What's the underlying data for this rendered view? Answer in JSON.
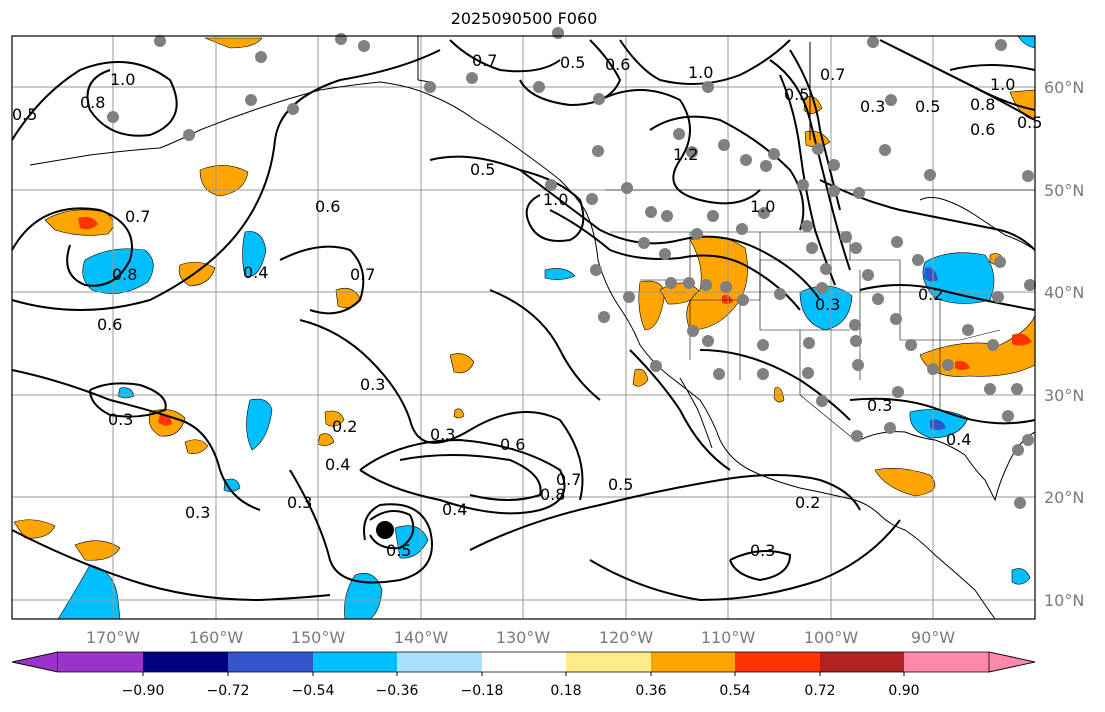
{
  "title": "2025090500 F060",
  "lon_labels": [
    "170°W",
    "160°W",
    "150°W",
    "140°W",
    "130°W",
    "120°W",
    "110°W",
    "100°W",
    "90°W"
  ],
  "lat_labels": [
    "60°N",
    "50°N",
    "40°N",
    "30°N",
    "20°N",
    "10°N"
  ],
  "colorbar": {
    "ticks": [
      "−0.90",
      "−0.72",
      "−0.54",
      "−0.36",
      "−0.18",
      "0.18",
      "0.36",
      "0.54",
      "0.72",
      "0.90"
    ],
    "colors": [
      "#9933cc",
      "#000080",
      "#3355cc",
      "#00bfff",
      "#aadfff",
      "#ffffff",
      "#ffeb8a",
      "#ffa500",
      "#ff3300",
      "#b22222",
      "#ff88aa"
    ]
  },
  "contour_labels": [
    "0.5",
    "0.8",
    "1.0",
    "0.7",
    "0.5",
    "0.6",
    "1.0",
    "0.5",
    "0.7",
    "1.0",
    "0.5",
    "1.2",
    "0.3",
    "0.5",
    "0.8",
    "0.6",
    "1.0",
    "0.5",
    "0.6",
    "0.7",
    "1.0",
    "0.8",
    "0.6",
    "0.4",
    "0.7",
    "0.2",
    "0.3",
    "0.3",
    "0.2",
    "0.4",
    "0.3",
    "0.6",
    "0.8",
    "0.7",
    "0.5",
    "0.3",
    "0.3",
    "0.4",
    "0.5",
    "0.2",
    "0.3",
    "0.4",
    "0.3",
    "0.3"
  ],
  "fill_colors": {
    "orange": "#ffa500",
    "cyan": "#00bfff",
    "red": "#ff3300",
    "blue": "#3355cc",
    "station": "#808080"
  }
}
